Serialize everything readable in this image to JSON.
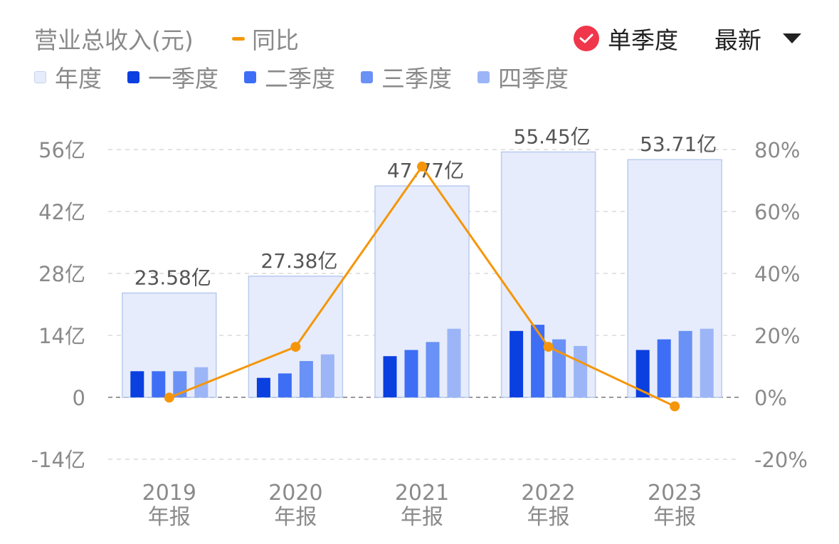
{
  "header": {
    "title": "营业总收入(元)",
    "yoy_label": "同比",
    "single_quarter_label": "单季度",
    "latest_label": "最新"
  },
  "legend": [
    {
      "label": "年度",
      "color": "#e6ecfb",
      "border": "#c5d3ee"
    },
    {
      "label": "一季度",
      "color": "#0a3fe0"
    },
    {
      "label": "二季度",
      "color": "#3d6ef5"
    },
    {
      "label": "三季度",
      "color": "#6a91f5"
    },
    {
      "label": "四季度",
      "color": "#9bb5f7"
    }
  ],
  "colors": {
    "yoy_line": "#f5960a",
    "check": "#f0364a",
    "annual_fill": "#e6ecfb",
    "annual_border": "#b9cbef",
    "grid": "#e3e3e3",
    "zero_line": "#9a9a9a",
    "axis_text": "#8a8a8a",
    "value_label": "#555555"
  },
  "chart_data": {
    "type": "bar",
    "categories": [
      "2019\n年报",
      "2020\n年报",
      "2021\n年报",
      "2022\n年报",
      "2023\n年报"
    ],
    "annual": {
      "values": [
        23.58,
        27.38,
        47.77,
        55.45,
        53.71
      ],
      "labels": [
        "23.58亿",
        "27.38亿",
        "47.77亿",
        "55.45亿",
        "53.71亿"
      ]
    },
    "series": [
      {
        "name": "一季度",
        "values": [
          5.9,
          4.4,
          9.3,
          15.0,
          10.7
        ]
      },
      {
        "name": "二季度",
        "values": [
          5.9,
          5.4,
          10.7,
          16.4,
          13.1
        ]
      },
      {
        "name": "三季度",
        "values": [
          5.9,
          8.2,
          12.5,
          13.1,
          15.0
        ]
      },
      {
        "name": "四季度",
        "values": [
          6.8,
          9.7,
          15.5,
          11.6,
          15.5
        ]
      }
    ],
    "yoy": {
      "name": "同比",
      "values": [
        -0.1,
        16.3,
        74.5,
        16.3,
        -2.9
      ]
    },
    "y_left": {
      "ticks": [
        56,
        42,
        28,
        14,
        0,
        -14
      ],
      "labels": [
        "56亿",
        "42亿",
        "28亿",
        "14亿",
        "0",
        "-14亿"
      ],
      "ylim": [
        -14,
        56
      ]
    },
    "y_right": {
      "ticks": [
        80,
        60,
        40,
        20,
        0,
        -20
      ],
      "labels": [
        "80%",
        "60%",
        "40%",
        "20%",
        "0%",
        "-20%"
      ],
      "ylim": [
        -20,
        80
      ]
    },
    "grid": true
  }
}
